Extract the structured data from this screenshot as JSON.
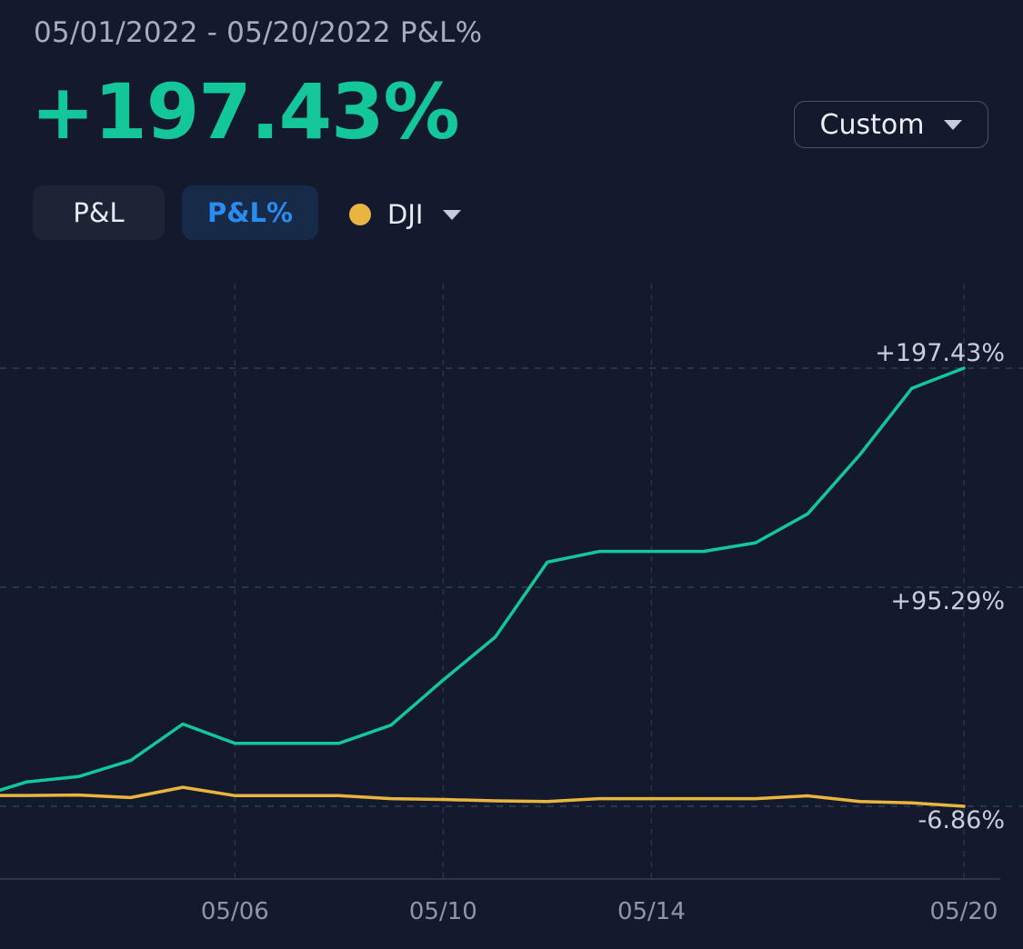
{
  "header": {
    "period_label": "05/01/2022 - 05/20/2022 P&L%",
    "value": "+197.43%",
    "range_select": "Custom"
  },
  "tabs": [
    {
      "label": "P&L",
      "active": false
    },
    {
      "label": "P&L%",
      "active": true
    }
  ],
  "benchmark": {
    "label": "DJI",
    "color": "#e9b53f"
  },
  "colors": {
    "background": "#141a2e",
    "pnl_line": "#14c79a",
    "benchmark_line": "#e9b53f",
    "active_tab_text": "#2a8cf0"
  },
  "chart_data": {
    "type": "line",
    "x": [
      "05/01",
      "05/02",
      "05/03",
      "05/04",
      "05/05",
      "05/06",
      "05/07",
      "05/08",
      "05/09",
      "05/10",
      "05/11",
      "05/12",
      "05/13",
      "05/14",
      "05/15",
      "05/16",
      "05/17",
      "05/18",
      "05/19",
      "05/20"
    ],
    "x_tick_labels": [
      "05/06",
      "05/10",
      "05/14",
      "05/20"
    ],
    "y_tick_labels": [
      "+197.43%",
      "+95.29%",
      "-6.86%"
    ],
    "ylim": [
      -6.86,
      197.43
    ],
    "grid": true,
    "series": [
      {
        "color": "#14c79a",
        "values": [
          -3.0,
          4.5,
          7.0,
          14.5,
          31.5,
          22.5,
          22.5,
          22.5,
          31.0,
          52.0,
          72.0,
          107.0,
          112.0,
          112.0,
          112.0,
          116.0,
          129.5,
          157.0,
          188.0,
          197.43
        ]
      },
      {
        "name": "DJI",
        "color": "#e9b53f",
        "values": [
          -1.8,
          -1.8,
          -1.6,
          -2.8,
          2.0,
          -1.9,
          -1.9,
          -1.9,
          -3.3,
          -3.7,
          -4.3,
          -4.6,
          -3.3,
          -3.3,
          -3.3,
          -3.3,
          -2.0,
          -4.6,
          -5.3,
          -6.86
        ]
      }
    ]
  }
}
